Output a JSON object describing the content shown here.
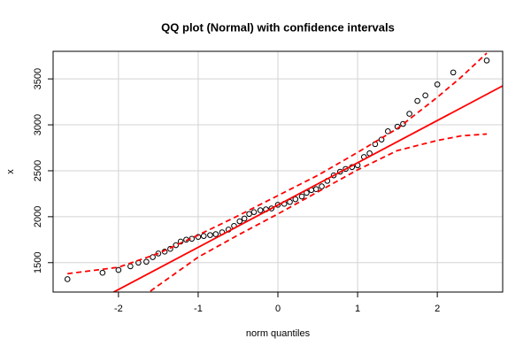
{
  "chart_data": {
    "type": "scatter",
    "title": "QQ plot (Normal) with confidence intervals",
    "xlabel": "norm quantiles",
    "ylabel": "x",
    "xlim": [
      -2.82,
      2.82
    ],
    "ylim": [
      1180,
      3800
    ],
    "xticks": [
      -2,
      -1,
      0,
      1,
      2
    ],
    "yticks": [
      1500,
      2000,
      2500,
      3000,
      3500
    ],
    "grid": true,
    "series": [
      {
        "name": "points",
        "kind": "points",
        "color": "#000000",
        "x": [
          -2.64,
          -2.2,
          -2.0,
          -1.85,
          -1.75,
          -1.65,
          -1.57,
          -1.5,
          -1.42,
          -1.35,
          -1.28,
          -1.22,
          -1.15,
          -1.08,
          -1.0,
          -0.93,
          -0.85,
          -0.78,
          -0.7,
          -0.62,
          -0.55,
          -0.48,
          -0.42,
          -0.36,
          -0.3,
          -0.22,
          -0.15,
          -0.08,
          0.0,
          0.08,
          0.15,
          0.22,
          0.3,
          0.36,
          0.42,
          0.48,
          0.55,
          0.62,
          0.7,
          0.78,
          0.85,
          0.93,
          1.0,
          1.08,
          1.15,
          1.22,
          1.3,
          1.38,
          1.5,
          1.57,
          1.65,
          1.75,
          1.85,
          2.0,
          2.2,
          2.62
        ],
        "values": [
          1320,
          1390,
          1420,
          1460,
          1500,
          1510,
          1560,
          1600,
          1620,
          1650,
          1690,
          1730,
          1750,
          1760,
          1780,
          1790,
          1800,
          1810,
          1830,
          1860,
          1900,
          1950,
          1980,
          2030,
          2050,
          2070,
          2080,
          2090,
          2130,
          2140,
          2160,
          2190,
          2220,
          2260,
          2290,
          2300,
          2330,
          2390,
          2450,
          2490,
          2520,
          2540,
          2560,
          2650,
          2690,
          2790,
          2840,
          2930,
          2980,
          3010,
          3120,
          3260,
          3320,
          3440,
          3570,
          3700
        ]
      },
      {
        "name": "reference",
        "kind": "line",
        "color": "#ff0000",
        "x": [
          -2.82,
          2.82
        ],
        "values": [
          830,
          3424
        ]
      },
      {
        "name": "upper",
        "kind": "dashed",
        "color": "#ff0000",
        "x": [
          -2.64,
          -2.0,
          -1.5,
          -1.0,
          -0.5,
          0,
          0.5,
          1.0,
          1.5,
          2.0,
          2.3,
          2.62
        ],
        "values": [
          1380,
          1450,
          1600,
          1800,
          2010,
          2230,
          2450,
          2700,
          2960,
          3300,
          3520,
          3780
        ]
      },
      {
        "name": "lower",
        "kind": "dashed",
        "color": "#ff0000",
        "x": [
          -1.6,
          -1.0,
          -0.5,
          0,
          0.5,
          1.0,
          1.5,
          2.0,
          2.3,
          2.62
        ],
        "values": [
          1190,
          1560,
          1800,
          2030,
          2270,
          2510,
          2720,
          2830,
          2880,
          2900
        ]
      }
    ]
  }
}
